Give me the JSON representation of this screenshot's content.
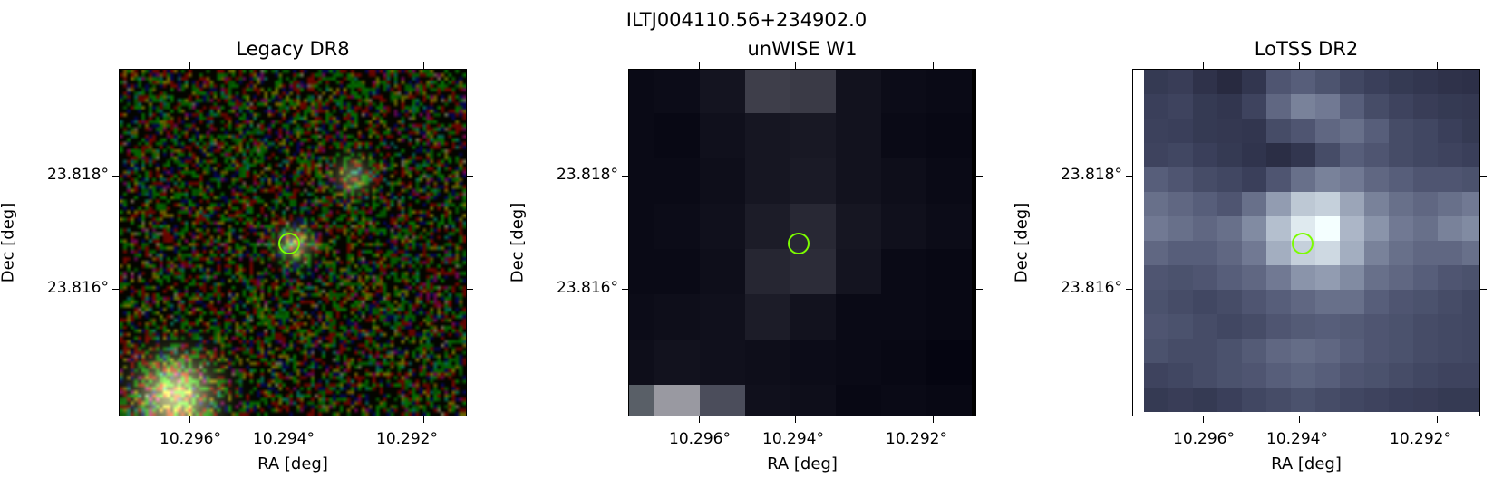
{
  "figure": {
    "source_name": "ILTJ004110.56+234902.0",
    "panels": [
      {
        "title": "Legacy DR8",
        "xlabel": "RA [deg]",
        "ylabel": "Dec [deg]",
        "xticks": [
          "10.296°",
          "10.294°",
          "10.292°"
        ],
        "yticks": [
          "23.818°",
          "23.816°"
        ],
        "image": "noisy-rgb-optical-cutout",
        "marker_color": "#7cfc00"
      },
      {
        "title": "unWISE W1",
        "xlabel": "RA [deg]",
        "ylabel": "Dec [deg]",
        "xticks": [
          "10.296°",
          "10.294°",
          "10.292°"
        ],
        "yticks": [
          "23.818°",
          "23.816°"
        ],
        "image": "pixelated-infrared-cutout",
        "marker_color": "#7cfc00"
      },
      {
        "title": "LoTSS DR2",
        "xlabel": "RA [deg]",
        "ylabel": "Dec [deg]",
        "xticks": [
          "10.296°",
          "10.294°",
          "10.292°"
        ],
        "yticks": [
          "23.818°",
          "23.816°"
        ],
        "image": "pixelated-radio-cutout",
        "marker_color": "#7cfc00"
      }
    ]
  }
}
